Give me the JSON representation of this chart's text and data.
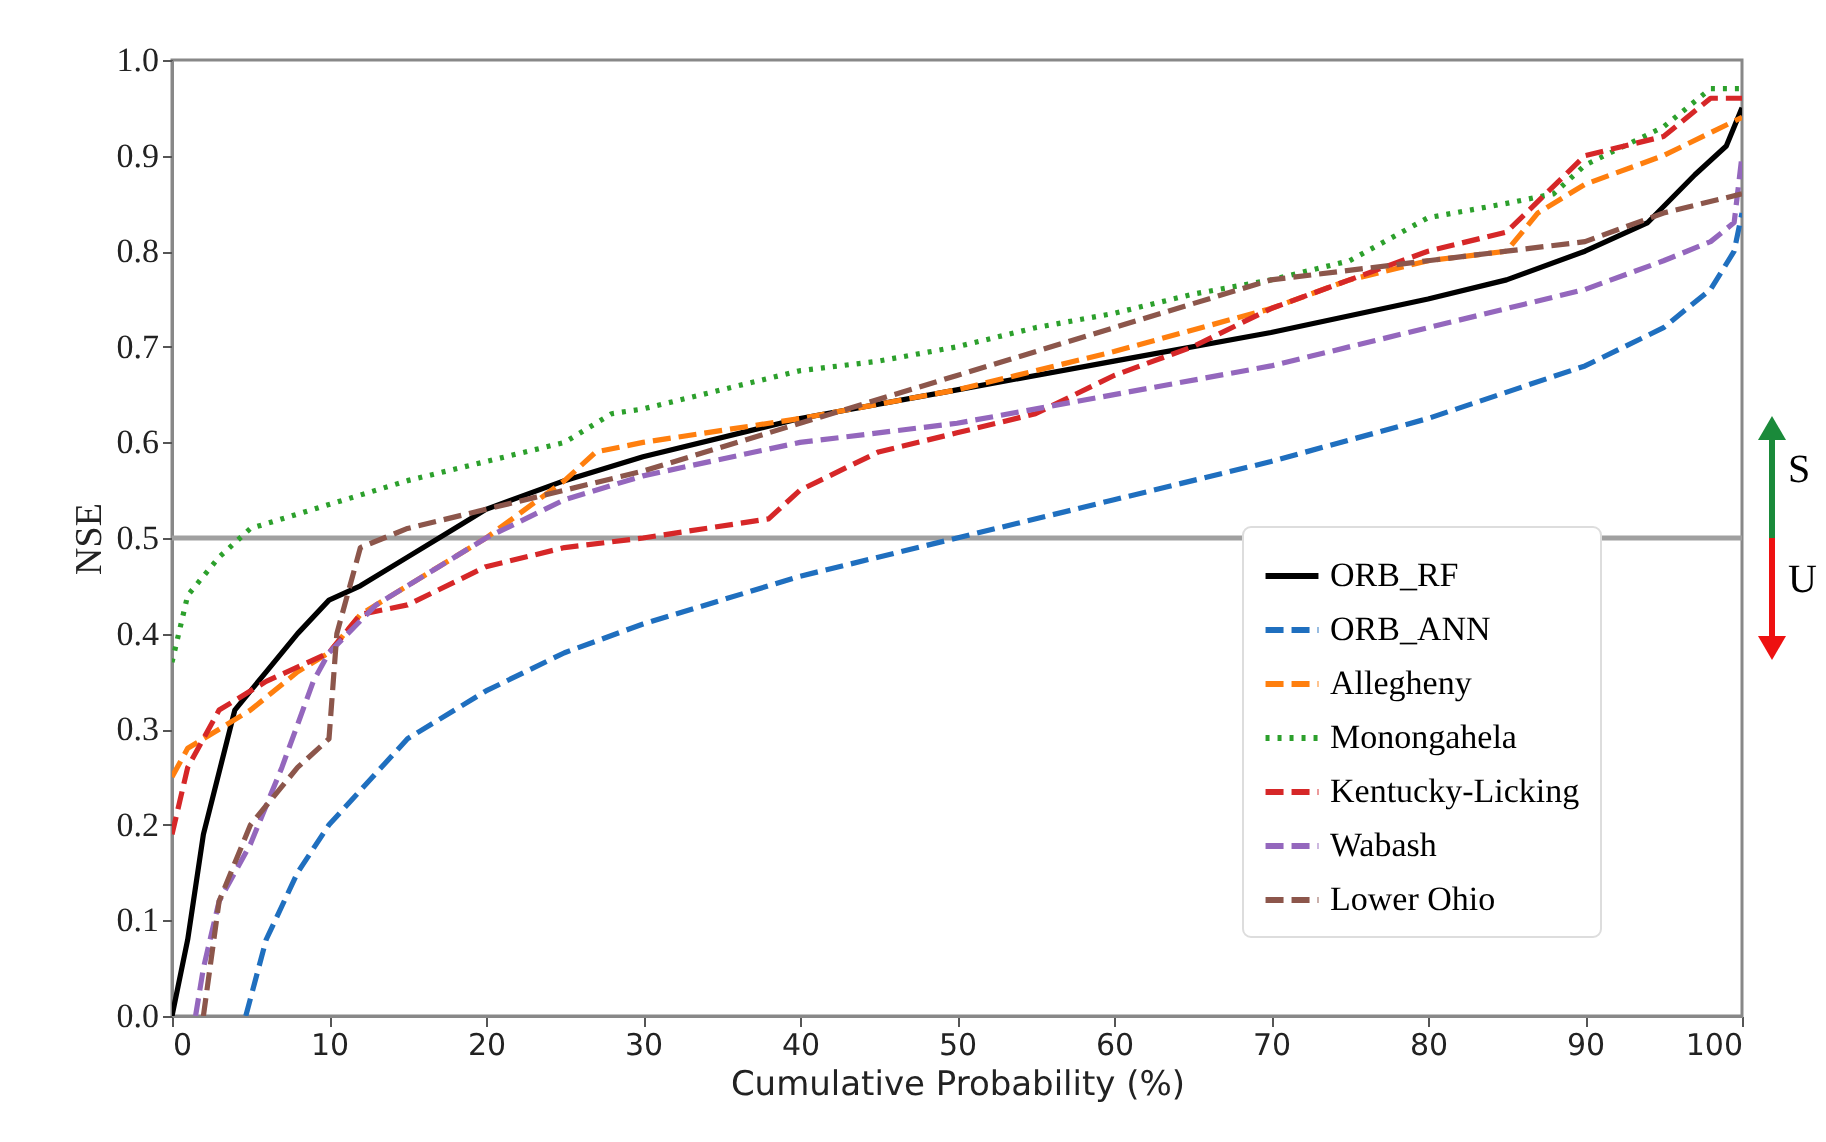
{
  "chart_data": {
    "type": "line",
    "xlabel": "Cumulative Probability (%)",
    "ylabel": "NSE",
    "xlim": [
      0,
      100
    ],
    "xticks": [
      0,
      10,
      20,
      30,
      40,
      50,
      60,
      70,
      80,
      90,
      100
    ],
    "ylim": [
      0,
      1
    ],
    "yticks": [
      {
        "value": 0,
        "label": "0.0"
      },
      {
        "value": 0.1,
        "label": "0.1"
      },
      {
        "value": 0.2,
        "label": "0.2"
      },
      {
        "value": 0.3,
        "label": "0.3"
      },
      {
        "value": 0.4,
        "label": "0.4"
      },
      {
        "value": 0.5,
        "label": "0.5"
      },
      {
        "value": 0.6,
        "label": "0.6"
      },
      {
        "value": 0.7,
        "label": "0.7"
      },
      {
        "value": 0.8,
        "label": "0.8"
      },
      {
        "value": 0.9,
        "label": "0.9"
      },
      {
        "value": 1,
        "label": "1.0"
      }
    ],
    "grid": false,
    "legend": "bottom right",
    "marker": "none",
    "ref_lines": [
      {
        "axis": "y",
        "value": 0.5,
        "color": "#a0a0a0"
      }
    ],
    "annotations": [
      "S",
      "U"
    ],
    "series": [
      {
        "name": "ORB_RF",
        "color": "#000000",
        "line_style": "solid",
        "x": [
          0,
          1,
          2,
          4,
          6,
          8,
          10,
          12,
          15,
          18,
          20,
          25,
          30,
          40,
          50,
          60,
          70,
          80,
          85,
          90,
          94,
          97,
          99,
          100
        ],
        "values": [
          0,
          0.08,
          0.19,
          0.32,
          0.36,
          0.4,
          0.435,
          0.45,
          0.48,
          0.51,
          0.53,
          0.56,
          0.585,
          0.625,
          0.655,
          0.685,
          0.715,
          0.75,
          0.77,
          0.8,
          0.83,
          0.88,
          0.91,
          0.95
        ]
      },
      {
        "name": "ORB_ANN",
        "color": "#1f6fbf",
        "line_style": "dashed",
        "x": [
          4.7,
          6,
          8,
          10,
          15,
          20,
          25,
          30,
          40,
          50,
          60,
          70,
          80,
          90,
          95,
          98,
          99.5,
          100
        ],
        "values": [
          0,
          0.08,
          0.15,
          0.2,
          0.29,
          0.34,
          0.38,
          0.41,
          0.46,
          0.5,
          0.54,
          0.58,
          0.625,
          0.68,
          0.72,
          0.76,
          0.8,
          0.84
        ]
      },
      {
        "name": "Allegheny",
        "color": "#ff7f0e",
        "line_style": "dashed",
        "x": [
          0,
          1,
          5,
          8,
          10,
          12,
          15,
          20,
          25,
          27,
          30,
          40,
          50,
          60,
          70,
          75,
          80,
          85,
          87,
          90,
          95,
          100
        ],
        "values": [
          0.25,
          0.28,
          0.32,
          0.36,
          0.38,
          0.42,
          0.45,
          0.5,
          0.56,
          0.59,
          0.6,
          0.625,
          0.655,
          0.695,
          0.74,
          0.77,
          0.79,
          0.8,
          0.84,
          0.87,
          0.9,
          0.94
        ]
      },
      {
        "name": "Monongahela",
        "color": "#2ca02c",
        "line_style": "dotted",
        "x": [
          0,
          1,
          3,
          5,
          10,
          15,
          20,
          25,
          28,
          30,
          35,
          40,
          45,
          50,
          55,
          60,
          65,
          70,
          75,
          80,
          85,
          88,
          90,
          95,
          98,
          100
        ],
        "values": [
          0.37,
          0.44,
          0.48,
          0.51,
          0.535,
          0.56,
          0.58,
          0.6,
          0.63,
          0.635,
          0.655,
          0.675,
          0.685,
          0.7,
          0.72,
          0.735,
          0.755,
          0.77,
          0.79,
          0.835,
          0.85,
          0.86,
          0.89,
          0.93,
          0.97,
          0.97
        ]
      },
      {
        "name": "Kentucky-Licking",
        "color": "#d62728",
        "line_style": "dashed",
        "x": [
          0,
          1,
          3,
          6,
          10,
          12,
          15,
          20,
          25,
          30,
          38,
          40,
          45,
          50,
          55,
          60,
          65,
          70,
          75,
          80,
          85,
          90,
          95,
          98,
          100
        ],
        "values": [
          0.19,
          0.26,
          0.32,
          0.35,
          0.38,
          0.42,
          0.43,
          0.47,
          0.49,
          0.5,
          0.52,
          0.55,
          0.59,
          0.61,
          0.63,
          0.67,
          0.7,
          0.74,
          0.77,
          0.8,
          0.82,
          0.9,
          0.92,
          0.96,
          0.96
        ]
      },
      {
        "name": "Wabash",
        "color": "#9467bd",
        "line_style": "dashed",
        "x": [
          1.5,
          2,
          3,
          5,
          7,
          9,
          10,
          13,
          17,
          20,
          25,
          30,
          40,
          50,
          60,
          70,
          80,
          90,
          95,
          98,
          99.5,
          100
        ],
        "values": [
          0,
          0.05,
          0.12,
          0.18,
          0.26,
          0.35,
          0.38,
          0.43,
          0.47,
          0.5,
          0.54,
          0.565,
          0.6,
          0.62,
          0.65,
          0.68,
          0.72,
          0.76,
          0.79,
          0.81,
          0.83,
          0.9
        ]
      },
      {
        "name": "Lower Ohio",
        "color": "#8c564b",
        "line_style": "dashed",
        "x": [
          2,
          3,
          5,
          8,
          10,
          10.5,
          12,
          15,
          20,
          25,
          30,
          40,
          50,
          60,
          70,
          80,
          85,
          90,
          95,
          100
        ],
        "values": [
          0,
          0.12,
          0.2,
          0.26,
          0.29,
          0.4,
          0.49,
          0.51,
          0.53,
          0.55,
          0.57,
          0.62,
          0.67,
          0.72,
          0.77,
          0.79,
          0.8,
          0.81,
          0.84,
          0.86
        ]
      }
    ]
  }
}
